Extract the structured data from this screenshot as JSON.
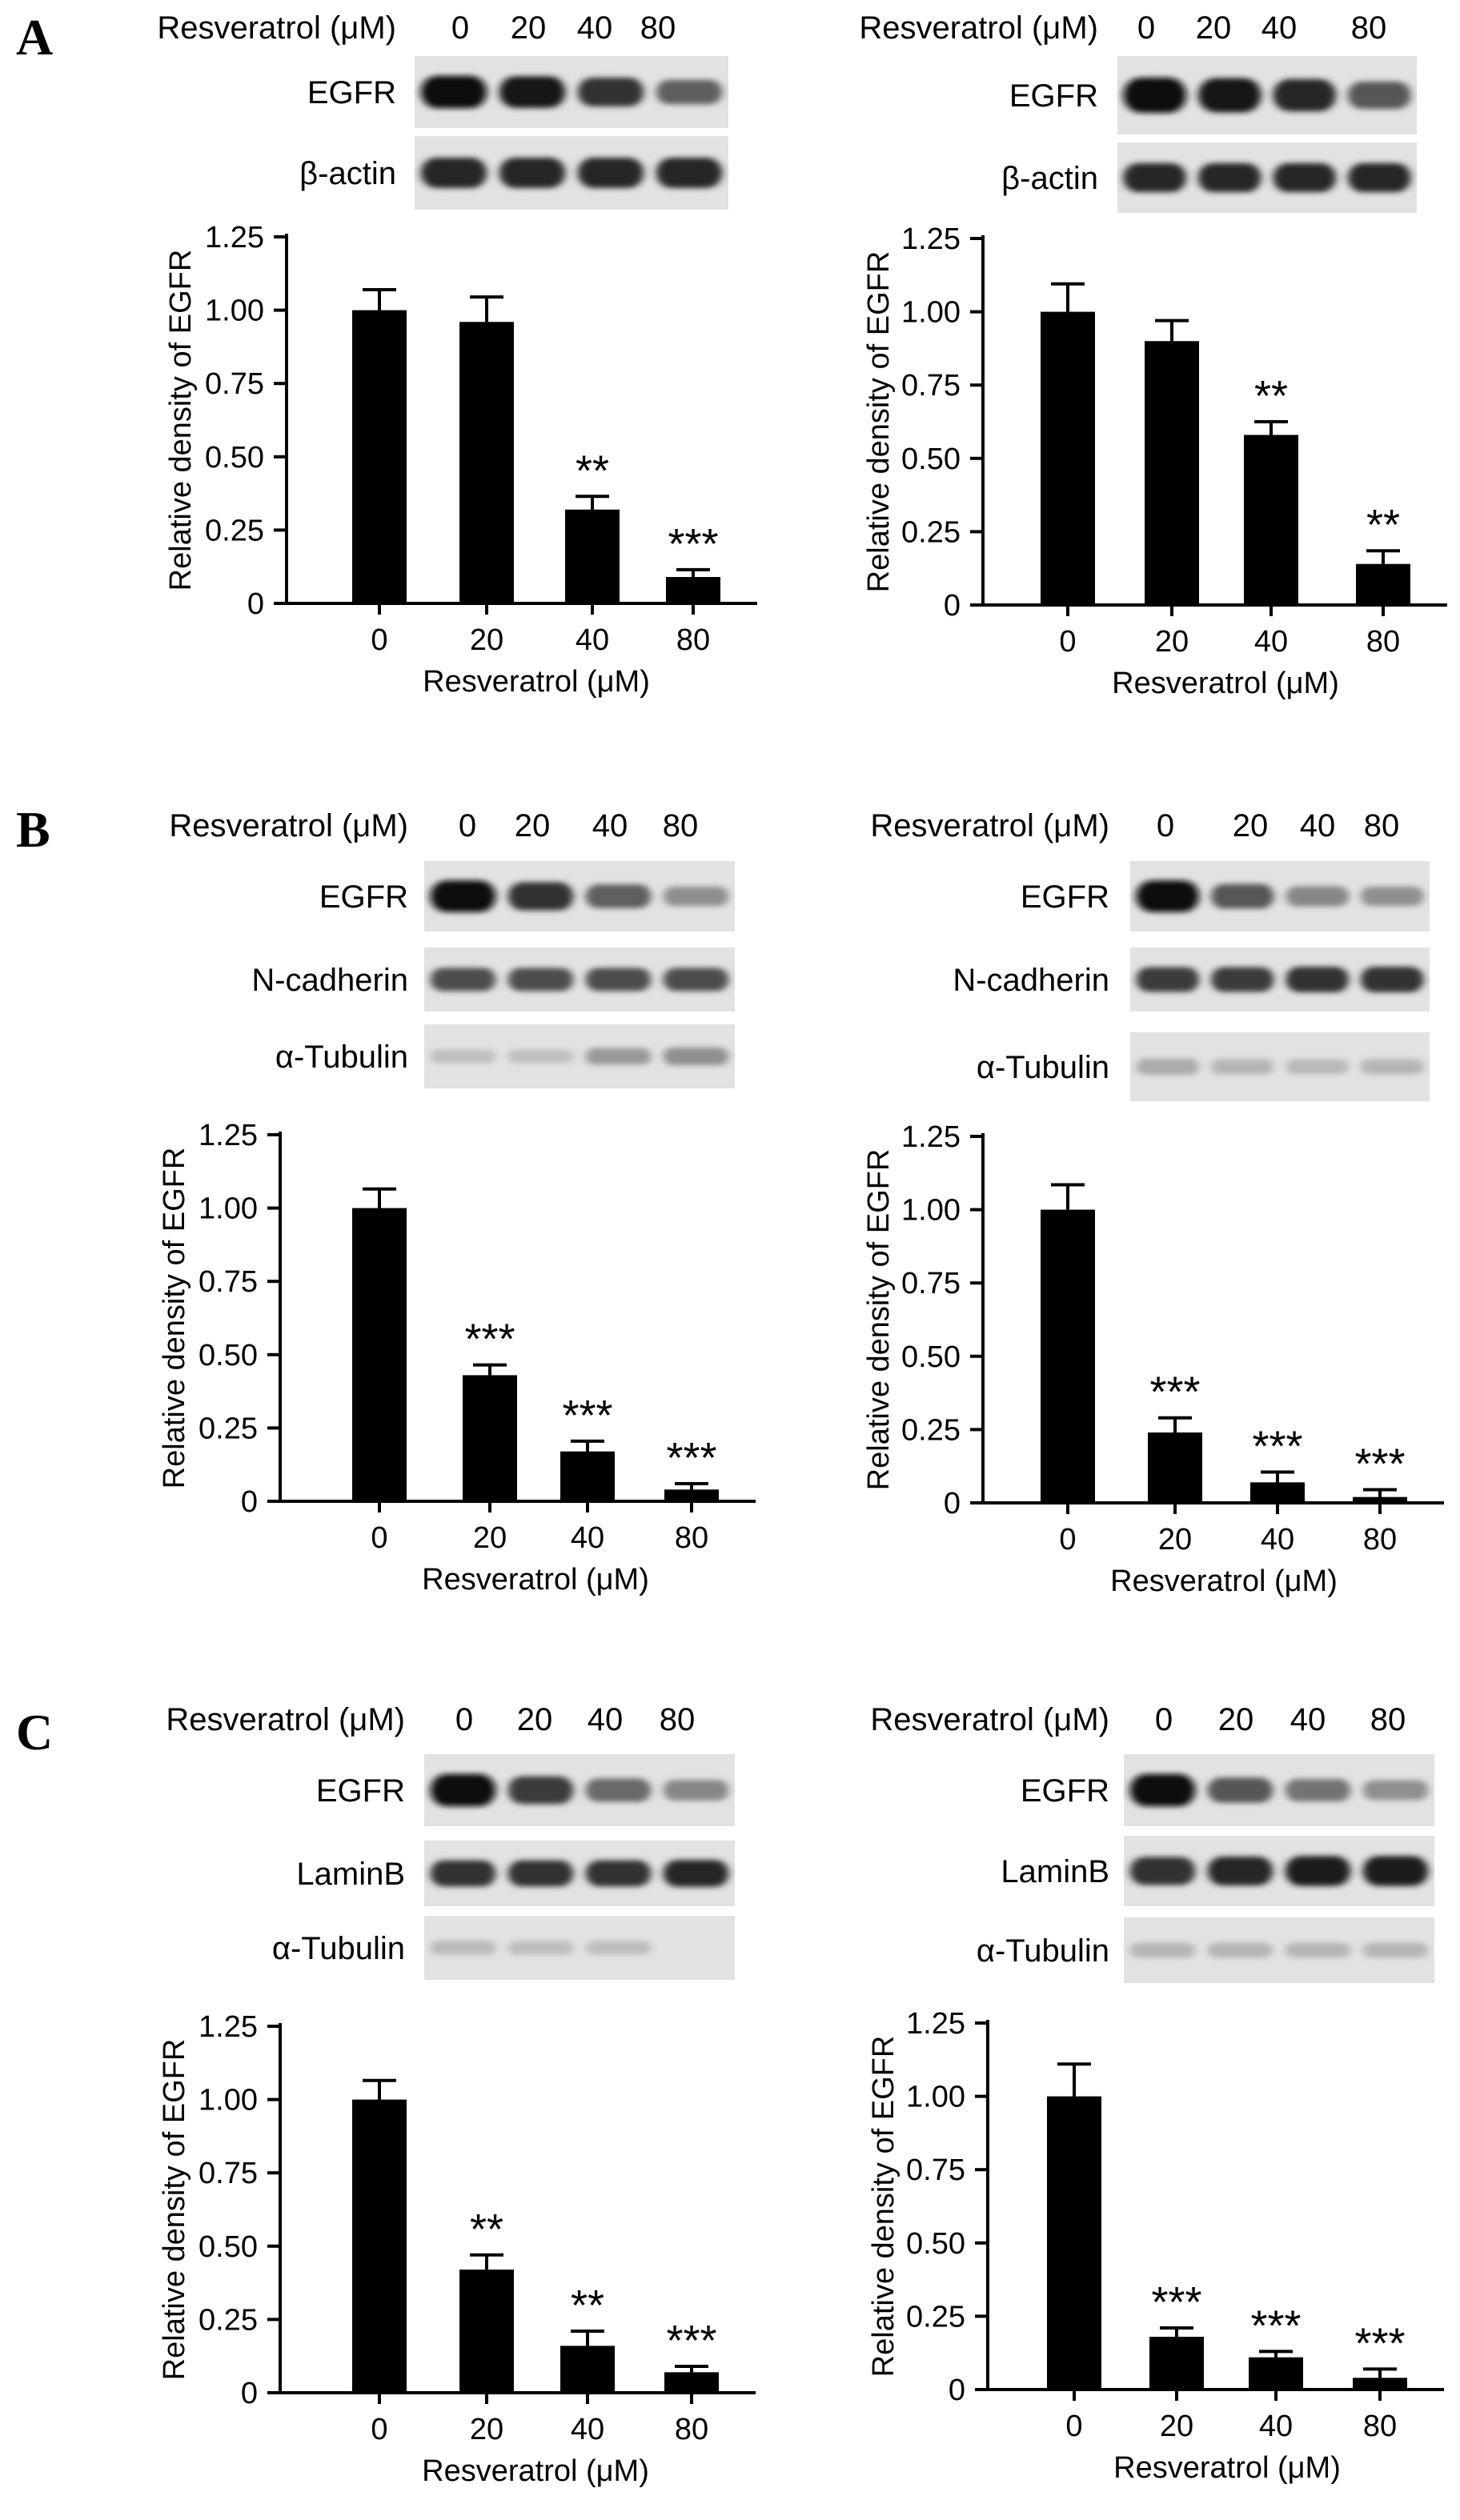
{
  "panel_labels": [
    "A",
    "B",
    "C"
  ],
  "colors": {
    "bar": "#000000",
    "axis": "#000000",
    "text": "#000000",
    "blot_bg": "#e2e2e2"
  },
  "blots": [
    {
      "header": {
        "label": "Resveratrol (μM)",
        "doses": [
          "0",
          "20",
          "40",
          "80"
        ]
      },
      "rows": [
        {
          "label": "EGFR",
          "intensity": [
            1.0,
            0.95,
            0.8,
            0.55
          ]
        },
        {
          "label": "β-actin",
          "intensity": [
            0.85,
            0.85,
            0.85,
            0.85
          ]
        }
      ]
    },
    {
      "header": {
        "label": "Resveratrol (μM)",
        "doses": [
          "0",
          "20",
          "40",
          "80"
        ]
      },
      "rows": [
        {
          "label": "EGFR",
          "intensity": [
            1.0,
            0.95,
            0.85,
            0.6
          ]
        },
        {
          "label": "β-actin",
          "intensity": [
            0.85,
            0.85,
            0.85,
            0.85
          ]
        }
      ]
    },
    {
      "header": {
        "label": "Resveratrol (μM)",
        "doses": [
          "0",
          "20",
          "40",
          "80"
        ]
      },
      "rows": [
        {
          "label": "EGFR",
          "intensity": [
            1.0,
            0.8,
            0.55,
            0.3
          ]
        },
        {
          "label": "N-cadherin",
          "intensity": [
            0.65,
            0.65,
            0.65,
            0.65
          ]
        },
        {
          "label": "α-Tubulin",
          "intensity": [
            0.05,
            0.05,
            0.25,
            0.3
          ]
        }
      ]
    },
    {
      "header": {
        "label": "Resveratrol (μM)",
        "doses": [
          "0",
          "20",
          "40",
          "80"
        ]
      },
      "rows": [
        {
          "label": "EGFR",
          "intensity": [
            1.0,
            0.6,
            0.35,
            0.3
          ]
        },
        {
          "label": "N-cadherin",
          "intensity": [
            0.75,
            0.75,
            0.8,
            0.8
          ]
        },
        {
          "label": "α-Tubulin",
          "intensity": [
            0.15,
            0.1,
            0.08,
            0.1
          ]
        }
      ]
    },
    {
      "header": {
        "label": "Resveratrol (μM)",
        "doses": [
          "0",
          "20",
          "40",
          "80"
        ]
      },
      "rows": [
        {
          "label": "EGFR",
          "intensity": [
            1.0,
            0.75,
            0.5,
            0.35
          ]
        },
        {
          "label": "LaminB",
          "intensity": [
            0.8,
            0.8,
            0.8,
            0.85
          ]
        },
        {
          "label": "α-Tubulin",
          "intensity": [
            0.08,
            0.06,
            0.06,
            0.0
          ]
        }
      ]
    },
    {
      "header": {
        "label": "Resveratrol (μM)",
        "doses": [
          "0",
          "20",
          "40",
          "80"
        ]
      },
      "rows": [
        {
          "label": "EGFR",
          "intensity": [
            1.0,
            0.6,
            0.45,
            0.3
          ]
        },
        {
          "label": "LaminB",
          "intensity": [
            0.8,
            0.85,
            0.9,
            0.9
          ]
        },
        {
          "label": "α-Tubulin",
          "intensity": [
            0.1,
            0.1,
            0.1,
            0.1
          ]
        }
      ]
    }
  ],
  "chart_data": [
    {
      "type": "bar",
      "panel": "A",
      "categories": [
        "0",
        "20",
        "40",
        "80"
      ],
      "values": [
        1.0,
        0.96,
        0.32,
        0.09
      ],
      "errors": [
        0.07,
        0.085,
        0.045,
        0.025
      ],
      "significance": [
        "",
        "",
        "**",
        "***"
      ],
      "xlabel": "Resveratrol (μM)",
      "ylabel": "Relative density of EGFR",
      "ylim": [
        0,
        1.25
      ],
      "yticks": [
        "0",
        "0.25",
        "0.50",
        "0.75",
        "1.00",
        "1.25"
      ],
      "grid": false
    },
    {
      "type": "bar",
      "panel": "A",
      "categories": [
        "0",
        "20",
        "40",
        "80"
      ],
      "values": [
        1.0,
        0.9,
        0.58,
        0.14
      ],
      "errors": [
        0.095,
        0.07,
        0.045,
        0.045
      ],
      "significance": [
        "",
        "",
        "**",
        "**"
      ],
      "xlabel": "Resveratrol (μM)",
      "ylabel": "Relative density of EGFR",
      "ylim": [
        0,
        1.25
      ],
      "yticks": [
        "0",
        "0.25",
        "0.50",
        "0.75",
        "1.00",
        "1.25"
      ],
      "grid": false
    },
    {
      "type": "bar",
      "panel": "B",
      "categories": [
        "0",
        "20",
        "40",
        "80"
      ],
      "values": [
        1.0,
        0.43,
        0.17,
        0.04
      ],
      "errors": [
        0.065,
        0.035,
        0.035,
        0.02
      ],
      "significance": [
        "",
        "***",
        "***",
        "***"
      ],
      "xlabel": "Resveratrol (μM)",
      "ylabel": "Relative density of EGFR",
      "ylim": [
        0,
        1.25
      ],
      "yticks": [
        "0",
        "0.25",
        "0.50",
        "0.75",
        "1.00",
        "1.25"
      ],
      "grid": false
    },
    {
      "type": "bar",
      "panel": "B",
      "categories": [
        "0",
        "20",
        "40",
        "80"
      ],
      "values": [
        1.0,
        0.24,
        0.07,
        0.02
      ],
      "errors": [
        0.085,
        0.05,
        0.035,
        0.025
      ],
      "significance": [
        "",
        "***",
        "***",
        "***"
      ],
      "xlabel": "Resveratrol (μM)",
      "ylabel": "Relative density of EGFR",
      "ylim": [
        0,
        1.25
      ],
      "yticks": [
        "0",
        "0.25",
        "0.50",
        "0.75",
        "1.00",
        "1.25"
      ],
      "grid": false
    },
    {
      "type": "bar",
      "panel": "C",
      "categories": [
        "0",
        "20",
        "40",
        "80"
      ],
      "values": [
        1.0,
        0.42,
        0.16,
        0.07
      ],
      "errors": [
        0.065,
        0.05,
        0.05,
        0.02
      ],
      "significance": [
        "",
        "**",
        "**",
        "***"
      ],
      "xlabel": "Resveratrol (μM)",
      "ylabel": "Relative density of EGFR",
      "ylim": [
        0,
        1.25
      ],
      "yticks": [
        "0",
        "0.25",
        "0.50",
        "0.75",
        "1.00",
        "1.25"
      ],
      "grid": false
    },
    {
      "type": "bar",
      "panel": "C",
      "categories": [
        "0",
        "20",
        "40",
        "80"
      ],
      "values": [
        1.0,
        0.18,
        0.11,
        0.04
      ],
      "errors": [
        0.11,
        0.03,
        0.02,
        0.03
      ],
      "significance": [
        "",
        "***",
        "***",
        "***"
      ],
      "xlabel": "Resveratrol (μM)",
      "ylabel": "Relative density of EGFR",
      "ylim": [
        0,
        1.25
      ],
      "yticks": [
        "0",
        "0.25",
        "0.50",
        "0.75",
        "1.00",
        "1.25"
      ],
      "grid": false
    }
  ]
}
